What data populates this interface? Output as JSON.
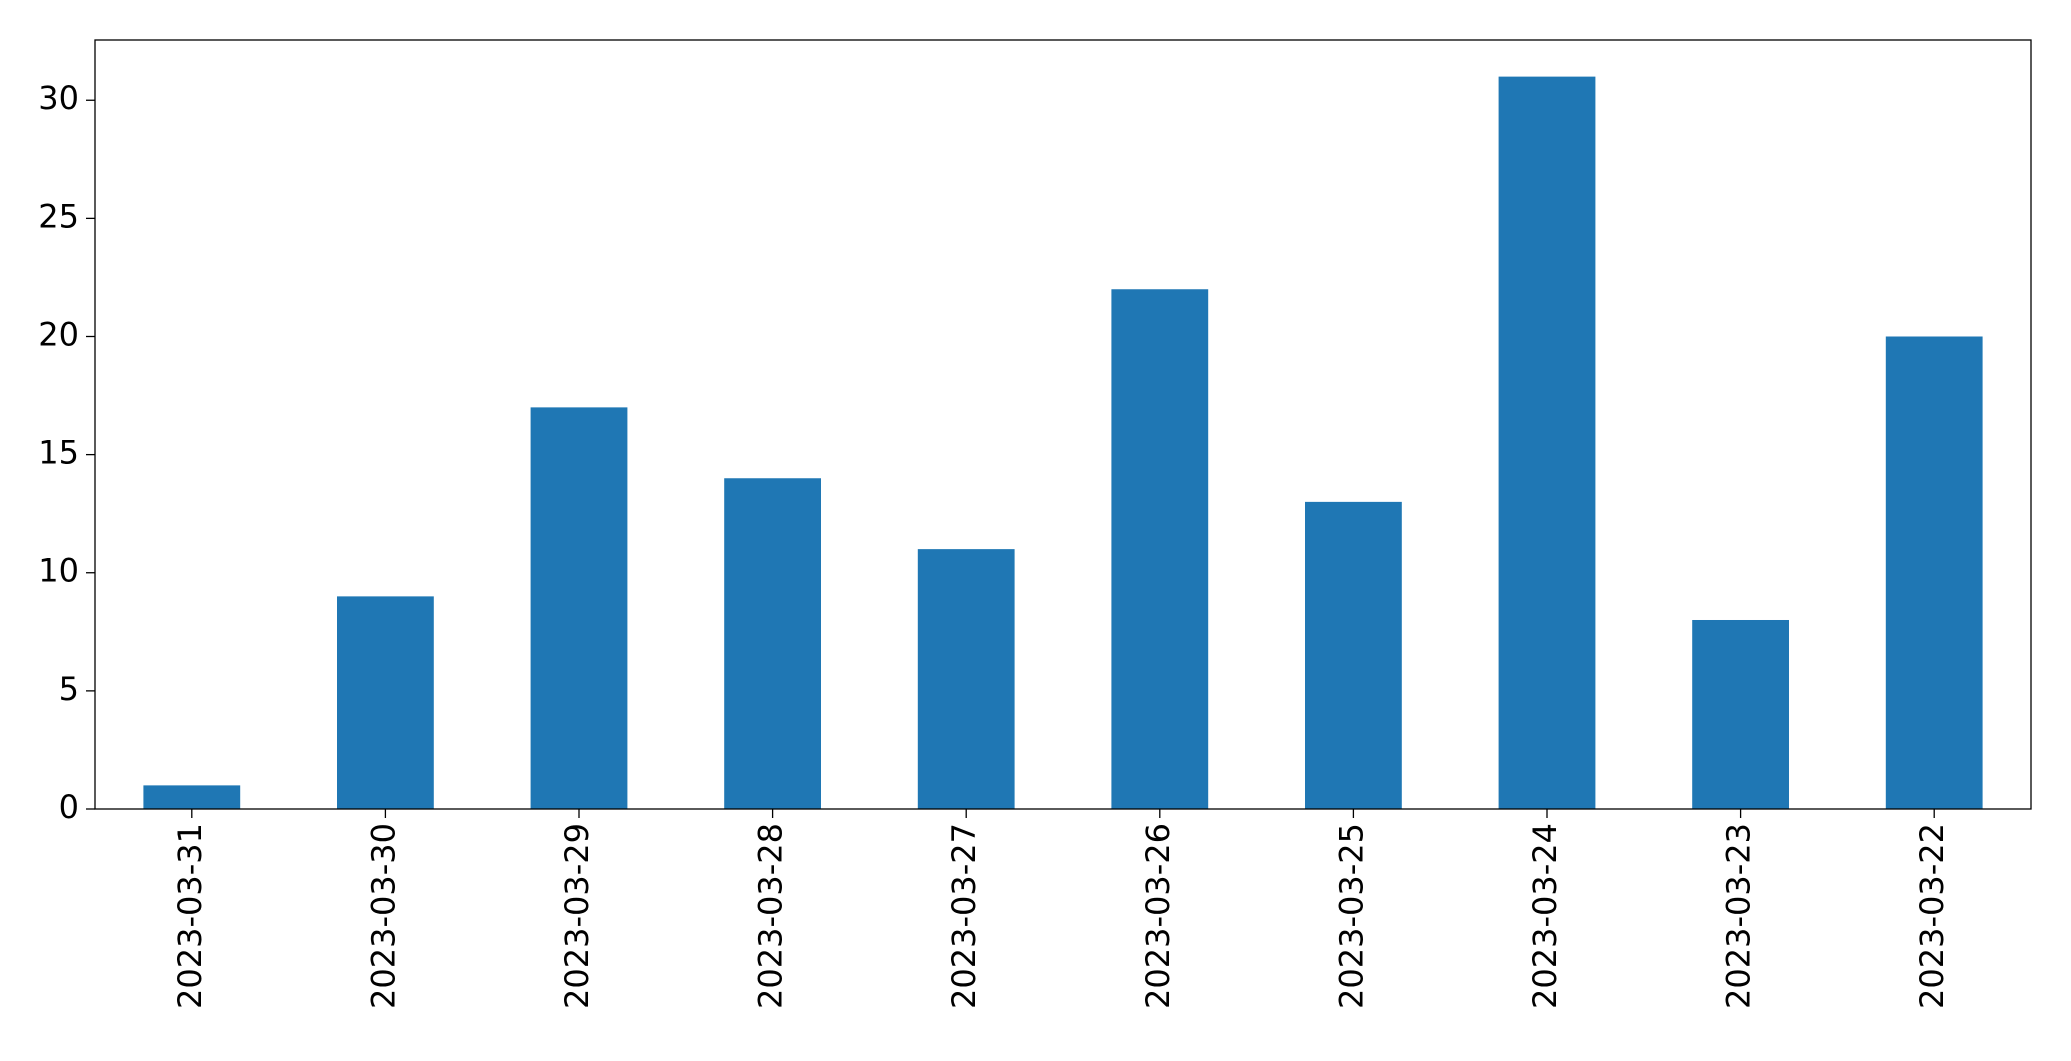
{
  "chart_data": {
    "type": "bar",
    "categories": [
      "2023-03-31",
      "2023-03-30",
      "2023-03-29",
      "2023-03-28",
      "2023-03-27",
      "2023-03-26",
      "2023-03-25",
      "2023-03-24",
      "2023-03-23",
      "2023-03-22"
    ],
    "values": [
      1,
      9,
      17,
      14,
      11,
      22,
      13,
      31,
      8,
      20
    ],
    "color": "#1f77b4",
    "ylim": [
      0,
      32.55
    ],
    "yticks": [
      0,
      5,
      10,
      15,
      20,
      25,
      30
    ],
    "grid": false
  }
}
